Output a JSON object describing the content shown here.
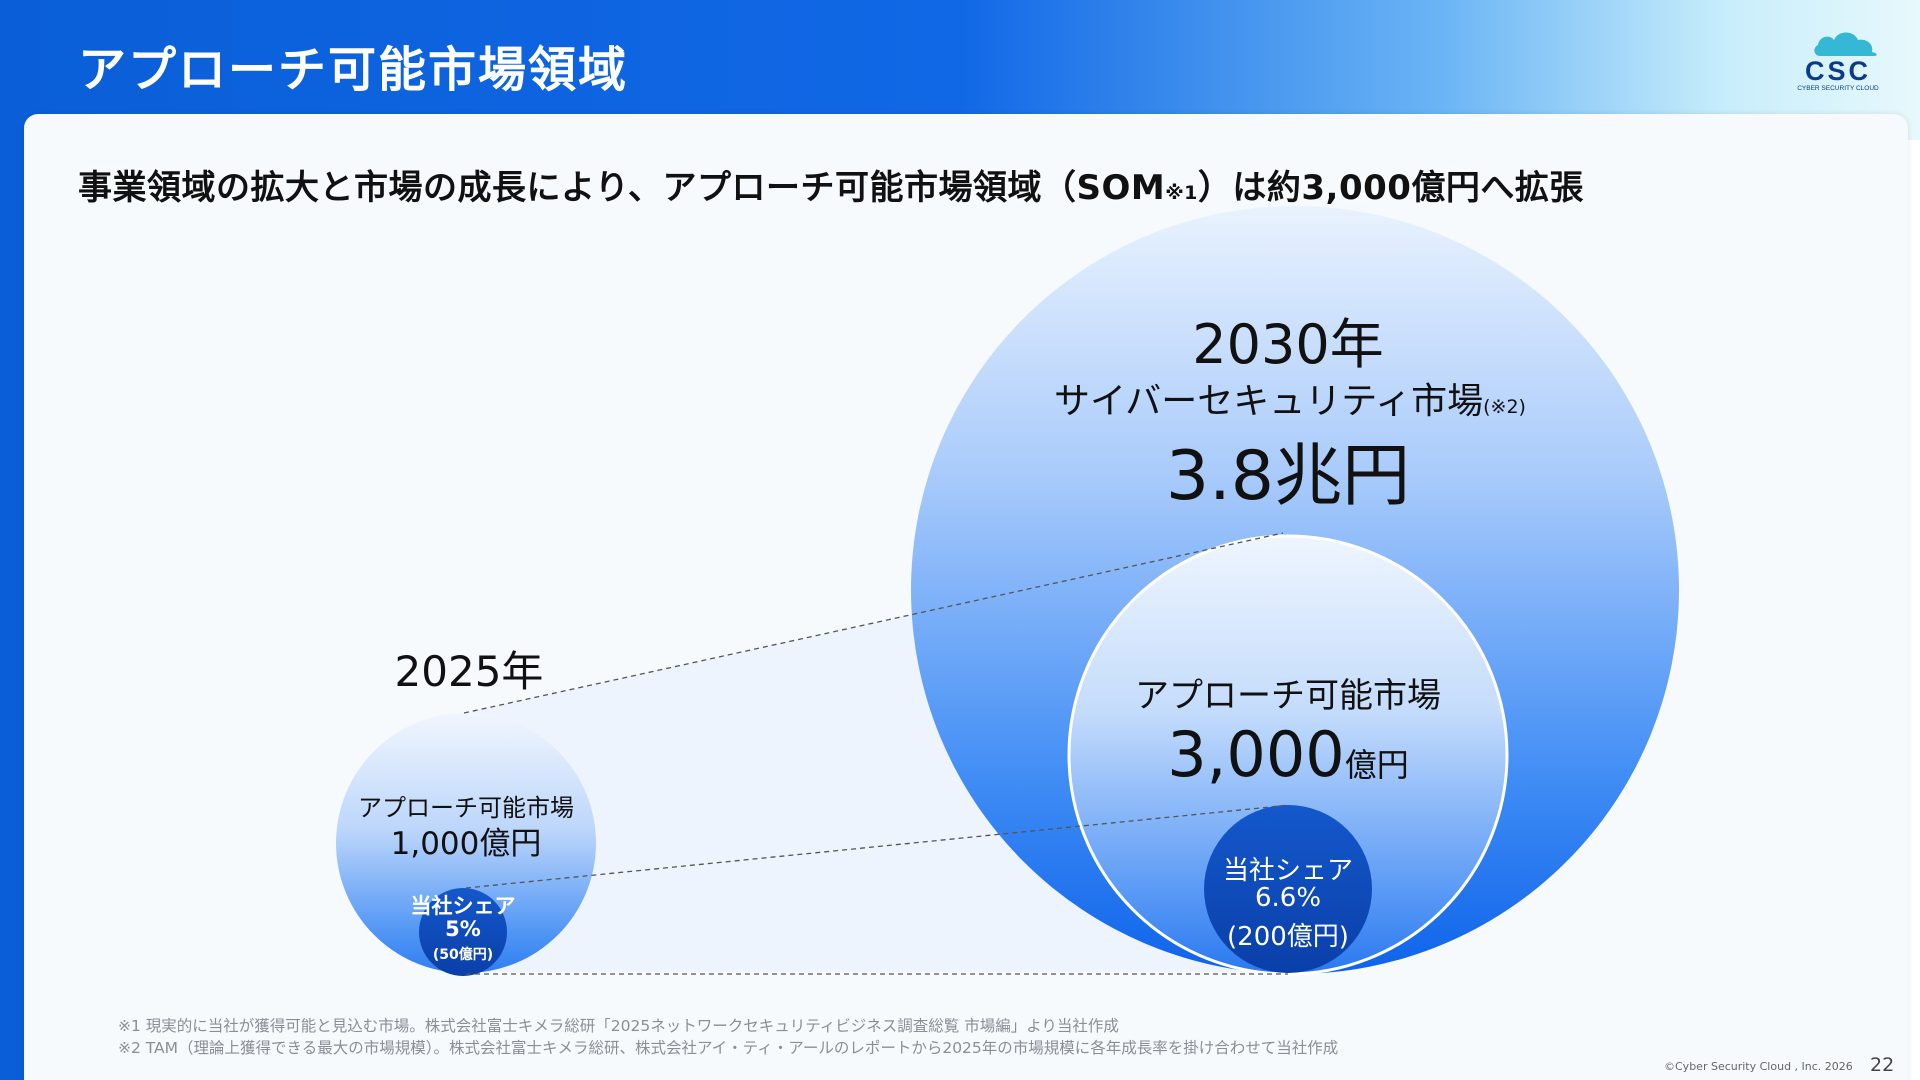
{
  "slide": {
    "title": "アプローチ可能市場領域",
    "headline_main": "事業領域の拡大と市場の成長により、アプローチ可能市場領域（SOM",
    "headline_sub": "※1",
    "headline_end": "）は約3,000億円へ拡張",
    "page_number": "22",
    "copyright": "©Cyber Security Cloud , Inc. 2026"
  },
  "logo": {
    "text": "CSC",
    "tagline": "CYBER SECURITY CLOUD"
  },
  "left_group": {
    "year": "2025年",
    "market_label": "アプローチ可能市場",
    "market_value": "1,000億円",
    "share_label": "当社シェア",
    "share_pct": "5%",
    "share_value": "(50億円)"
  },
  "right_group": {
    "year": "2030年",
    "tam_label": "サイバーセキュリティ市場",
    "tam_note": "(※2)",
    "tam_value": "3.8兆円",
    "market_label": "アプローチ可能市場",
    "market_value": "3,000",
    "market_unit": "億円",
    "share_label": "当社シェア",
    "share_pct": "6.6%",
    "share_value": "(200億円)"
  },
  "footnotes": [
    "※1 現実的に当社が獲得可能と見込む市場。株式会社富士キメラ総研「2025ネットワークセキュリティビジネス調査総覧 市場編」より当社作成",
    "※2 TAM（理論上獲得できる最大の市場規模）。株式会社富士キメラ総研、株式会社アイ・ティ・アールのレポートから2025年の市場規模に各年成長率を掛け合わせて当社作成"
  ],
  "colors": {
    "brand_blue": "#0a5fd8",
    "circle_light": "#dbe9fd",
    "circle_mid": "#1a6ff0",
    "share_dark": "#0b45b5"
  }
}
